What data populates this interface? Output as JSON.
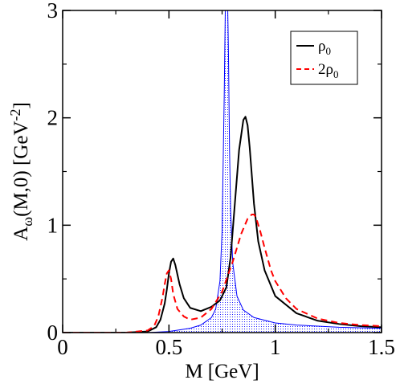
{
  "chart_data": {
    "type": "line",
    "title": "",
    "xlabel": {
      "main": "M [GeV]"
    },
    "ylabel": {
      "base": "A",
      "sub": "ω",
      "mid": "(M,0) [GeV",
      "sup": "-2",
      "end": "]"
    },
    "xlim": [
      0,
      1.5
    ],
    "ylim": [
      0,
      3
    ],
    "xticks": [
      {
        "value": 0,
        "label": "0"
      },
      {
        "value": 0.5,
        "label": "0.5"
      },
      {
        "value": 1.0,
        "label": "1"
      },
      {
        "value": 1.5,
        "label": "1.5"
      }
    ],
    "yticks": [
      {
        "value": 0,
        "label": "0"
      },
      {
        "value": 1,
        "label": "1"
      },
      {
        "value": 2,
        "label": "2"
      },
      {
        "value": 3,
        "label": "3"
      }
    ],
    "legend_position": "top-right",
    "series": [
      {
        "name": "vacuum",
        "in_legend": false,
        "style": "filled-dotted",
        "color": "#0000ff",
        "x": [
          0.4,
          0.5,
          0.6,
          0.65,
          0.7,
          0.72,
          0.74,
          0.75,
          0.76,
          0.765,
          0.77,
          0.775,
          0.78,
          0.785,
          0.79,
          0.8,
          0.82,
          0.85,
          0.9,
          1.0,
          1.1,
          1.2,
          1.3,
          1.5
        ],
        "y": [
          0.0,
          0.01,
          0.04,
          0.07,
          0.14,
          0.22,
          0.48,
          0.95,
          2.2,
          3.0,
          3.3,
          3.2,
          2.6,
          1.7,
          1.15,
          0.65,
          0.34,
          0.21,
          0.14,
          0.09,
          0.07,
          0.06,
          0.05,
          0.04
        ]
      },
      {
        "name": "ρ",
        "sub": "0",
        "in_legend": true,
        "style": "solid",
        "color": "#000000",
        "x": [
          0.0,
          0.3,
          0.4,
          0.44,
          0.46,
          0.48,
          0.49,
          0.5,
          0.51,
          0.52,
          0.53,
          0.55,
          0.57,
          0.6,
          0.65,
          0.7,
          0.74,
          0.77,
          0.79,
          0.81,
          0.83,
          0.85,
          0.86,
          0.87,
          0.88,
          0.9,
          0.92,
          0.95,
          1.0,
          1.1,
          1.2,
          1.3,
          1.4,
          1.5
        ],
        "y": [
          0.0,
          0.0,
          0.01,
          0.05,
          0.12,
          0.27,
          0.4,
          0.55,
          0.66,
          0.69,
          0.63,
          0.45,
          0.32,
          0.23,
          0.2,
          0.24,
          0.3,
          0.42,
          0.7,
          1.2,
          1.7,
          1.98,
          2.01,
          1.93,
          1.72,
          1.2,
          0.85,
          0.58,
          0.34,
          0.18,
          0.11,
          0.08,
          0.06,
          0.05
        ]
      },
      {
        "name": "2ρ",
        "sub": "0",
        "in_legend": true,
        "style": "dashed",
        "color": "#ff0000",
        "x": [
          0.0,
          0.3,
          0.4,
          0.43,
          0.45,
          0.47,
          0.48,
          0.49,
          0.5,
          0.51,
          0.52,
          0.54,
          0.57,
          0.6,
          0.65,
          0.7,
          0.75,
          0.8,
          0.84,
          0.87,
          0.89,
          0.9,
          0.91,
          0.93,
          0.95,
          0.98,
          1.0,
          1.05,
          1.1,
          1.2,
          1.3,
          1.4,
          1.5
        ],
        "y": [
          0.0,
          0.0,
          0.02,
          0.06,
          0.15,
          0.33,
          0.45,
          0.55,
          0.58,
          0.5,
          0.36,
          0.22,
          0.15,
          0.12,
          0.14,
          0.22,
          0.38,
          0.66,
          0.92,
          1.06,
          1.1,
          1.1,
          1.07,
          0.94,
          0.79,
          0.58,
          0.48,
          0.32,
          0.22,
          0.13,
          0.09,
          0.07,
          0.06
        ]
      }
    ]
  }
}
